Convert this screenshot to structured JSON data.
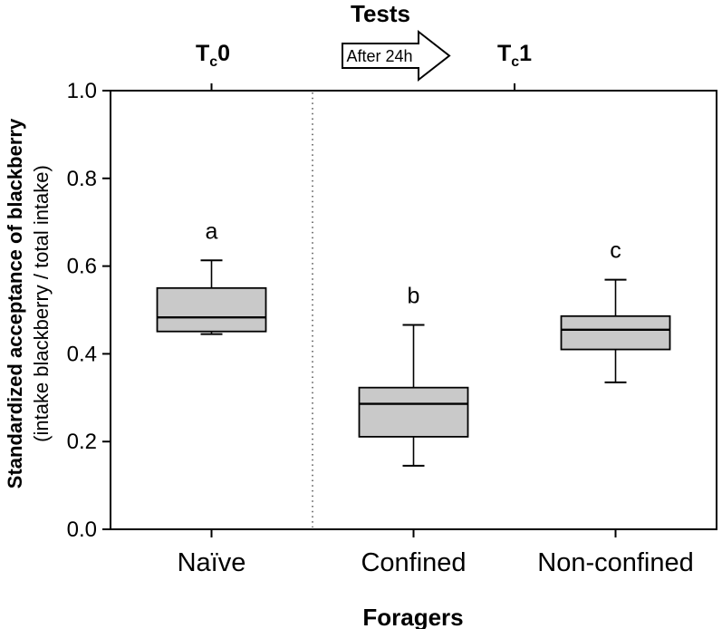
{
  "title": "Tests",
  "top_axis": {
    "t0": {
      "main": "T",
      "sub": "c",
      "suffix": "0"
    },
    "t1": {
      "main": "T",
      "sub": "c",
      "suffix": "1"
    },
    "arrow_label": "After 24h"
  },
  "y_axis": {
    "title_line1": "Standardized acceptance of blackberry",
    "title_line2": "(intake blackberry / total intake)",
    "tick_labels": [
      "0.0",
      "0.2",
      "0.4",
      "0.6",
      "0.8",
      "1.0"
    ]
  },
  "x_axis": {
    "title": "Foragers",
    "categories": [
      "Naïve",
      "Confined",
      "Non-confined"
    ]
  },
  "chart_data": {
    "type": "boxplot",
    "title": "Tests",
    "xlabel": "Foragers",
    "ylabel_line1": "Standardized acceptance of blackberry",
    "ylabel_line2": "(intake blackberry / total intake)",
    "ylim": [
      0.0,
      1.0
    ],
    "y_ticks": [
      0.0,
      0.2,
      0.4,
      0.6,
      0.8,
      1.0
    ],
    "grid": false,
    "legend": "none",
    "categories": [
      "Naïve",
      "Confined",
      "Non-confined"
    ],
    "test_groups": [
      {
        "label": "Tc0",
        "category_indices": [
          0
        ]
      },
      {
        "label": "Tc1",
        "category_indices": [
          1,
          2
        ]
      }
    ],
    "transition_label": "After 24h",
    "boxes": [
      {
        "category": "Naïve",
        "test": "Tc0",
        "significance_letter": "a",
        "whisker_low": 0.445,
        "q1": 0.451,
        "median": 0.483,
        "q3": 0.55,
        "whisker_high": 0.613
      },
      {
        "category": "Confined",
        "test": "Tc1",
        "significance_letter": "b",
        "whisker_low": 0.145,
        "q1": 0.211,
        "median": 0.286,
        "q3": 0.323,
        "whisker_high": 0.466
      },
      {
        "category": "Non-confined",
        "test": "Tc1",
        "significance_letter": "c",
        "whisker_low": 0.335,
        "q1": 0.41,
        "median": 0.455,
        "q3": 0.486,
        "whisker_high": 0.569
      }
    ],
    "box_fill_color": "#c9c9c9",
    "stroke_color": "#000000",
    "background_color": "#ffffff",
    "divider": "dotted vertical line separating Tc0 (Naïve) from Tc1 (Confined, Non-confined)"
  }
}
